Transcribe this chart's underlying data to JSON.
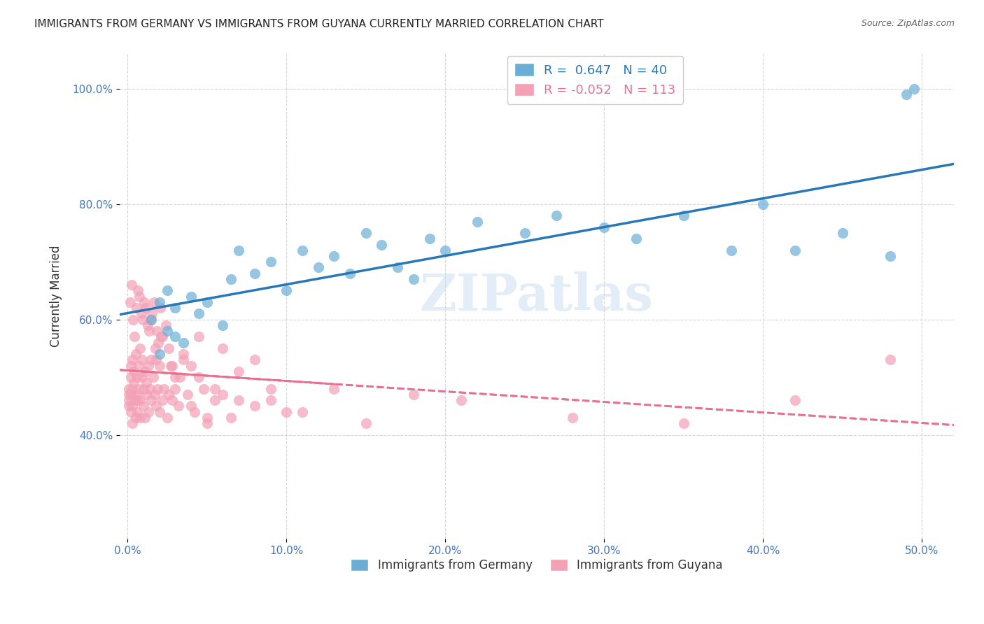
{
  "title": "IMMIGRANTS FROM GERMANY VS IMMIGRANTS FROM GUYANA CURRENTLY MARRIED CORRELATION CHART",
  "source": "Source: ZipAtlas.com",
  "xlabel_ticks": [
    0.0,
    0.1,
    0.2,
    0.3,
    0.4,
    0.5
  ],
  "xlabel_labels": [
    "0.0%",
    "10.0%",
    "20.0%",
    "30.0%",
    "40.0%",
    "50.0%"
  ],
  "ylabel_ticks": [
    0.4,
    0.6,
    0.8,
    1.0
  ],
  "ylabel_labels": [
    "40.0%",
    "60.0%",
    "80.0%",
    "100.0%"
  ],
  "ylabel_label": "Currently Married",
  "xlim": [
    -0.005,
    0.52
  ],
  "ylim": [
    0.22,
    1.06
  ],
  "germany_R": 0.647,
  "germany_N": 40,
  "guyana_R": -0.052,
  "guyana_N": 113,
  "germany_color": "#6aaed6",
  "guyana_color": "#f4a0b5",
  "germany_line_color": "#2878b8",
  "guyana_line_color": "#e87090",
  "watermark": "ZIPatlas",
  "legend_title_blue": "Immigrants from Germany",
  "legend_title_pink": "Immigrants from Guyana",
  "germany_x": [
    0.02,
    0.015,
    0.02,
    0.025,
    0.03,
    0.04,
    0.035,
    0.045,
    0.03,
    0.025,
    0.05,
    0.06,
    0.065,
    0.07,
    0.08,
    0.09,
    0.1,
    0.11,
    0.12,
    0.13,
    0.14,
    0.15,
    0.16,
    0.17,
    0.18,
    0.19,
    0.2,
    0.22,
    0.25,
    0.27,
    0.3,
    0.32,
    0.35,
    0.38,
    0.4,
    0.42,
    0.45,
    0.48,
    0.49,
    0.495
  ],
  "germany_y": [
    0.54,
    0.6,
    0.63,
    0.58,
    0.62,
    0.64,
    0.56,
    0.61,
    0.57,
    0.65,
    0.63,
    0.59,
    0.67,
    0.72,
    0.68,
    0.7,
    0.65,
    0.72,
    0.69,
    0.71,
    0.68,
    0.75,
    0.73,
    0.69,
    0.67,
    0.74,
    0.72,
    0.77,
    0.75,
    0.78,
    0.76,
    0.74,
    0.78,
    0.72,
    0.8,
    0.72,
    0.75,
    0.71,
    0.99,
    1.0
  ],
  "guyana_x": [
    0.001,
    0.001,
    0.001,
    0.001,
    0.002,
    0.002,
    0.002,
    0.002,
    0.003,
    0.003,
    0.003,
    0.003,
    0.004,
    0.004,
    0.004,
    0.005,
    0.005,
    0.005,
    0.006,
    0.006,
    0.006,
    0.007,
    0.007,
    0.008,
    0.008,
    0.008,
    0.009,
    0.009,
    0.01,
    0.01,
    0.011,
    0.011,
    0.012,
    0.012,
    0.013,
    0.013,
    0.014,
    0.015,
    0.015,
    0.016,
    0.017,
    0.018,
    0.018,
    0.019,
    0.02,
    0.02,
    0.021,
    0.022,
    0.023,
    0.025,
    0.026,
    0.027,
    0.028,
    0.03,
    0.032,
    0.033,
    0.035,
    0.038,
    0.04,
    0.042,
    0.045,
    0.048,
    0.05,
    0.055,
    0.06,
    0.065,
    0.07,
    0.08,
    0.09,
    0.1,
    0.0015,
    0.0025,
    0.0035,
    0.0045,
    0.0055,
    0.0065,
    0.0075,
    0.0085,
    0.0095,
    0.0105,
    0.0115,
    0.0125,
    0.0135,
    0.0145,
    0.0155,
    0.0165,
    0.0175,
    0.0185,
    0.0195,
    0.0205,
    0.022,
    0.024,
    0.026,
    0.028,
    0.03,
    0.035,
    0.04,
    0.045,
    0.05,
    0.055,
    0.06,
    0.07,
    0.08,
    0.09,
    0.11,
    0.13,
    0.15,
    0.18,
    0.21,
    0.28,
    0.35,
    0.42,
    0.48
  ],
  "guyana_y": [
    0.46,
    0.47,
    0.48,
    0.45,
    0.5,
    0.52,
    0.47,
    0.44,
    0.53,
    0.48,
    0.45,
    0.42,
    0.49,
    0.51,
    0.46,
    0.54,
    0.43,
    0.47,
    0.5,
    0.46,
    0.44,
    0.52,
    0.48,
    0.55,
    0.43,
    0.46,
    0.5,
    0.53,
    0.48,
    0.45,
    0.51,
    0.43,
    0.49,
    0.47,
    0.52,
    0.44,
    0.48,
    0.53,
    0.46,
    0.5,
    0.47,
    0.45,
    0.53,
    0.48,
    0.52,
    0.44,
    0.57,
    0.46,
    0.48,
    0.43,
    0.47,
    0.52,
    0.46,
    0.48,
    0.45,
    0.5,
    0.53,
    0.47,
    0.45,
    0.44,
    0.5,
    0.48,
    0.43,
    0.46,
    0.47,
    0.43,
    0.46,
    0.45,
    0.48,
    0.44,
    0.63,
    0.66,
    0.6,
    0.57,
    0.62,
    0.65,
    0.64,
    0.61,
    0.6,
    0.63,
    0.62,
    0.59,
    0.58,
    0.6,
    0.61,
    0.63,
    0.55,
    0.58,
    0.56,
    0.62,
    0.57,
    0.59,
    0.55,
    0.52,
    0.5,
    0.54,
    0.52,
    0.57,
    0.42,
    0.48,
    0.55,
    0.51,
    0.53,
    0.46,
    0.44,
    0.48,
    0.42,
    0.47,
    0.46,
    0.43,
    0.42,
    0.46,
    0.53
  ]
}
